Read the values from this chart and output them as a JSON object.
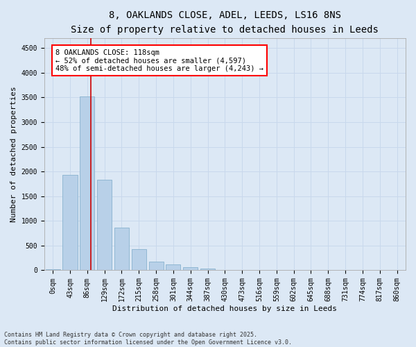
{
  "title_line1": "8, OAKLANDS CLOSE, ADEL, LEEDS, LS16 8NS",
  "title_line2": "Size of property relative to detached houses in Leeds",
  "xlabel": "Distribution of detached houses by size in Leeds",
  "ylabel": "Number of detached properties",
  "categories": [
    "0sqm",
    "43sqm",
    "86sqm",
    "129sqm",
    "172sqm",
    "215sqm",
    "258sqm",
    "301sqm",
    "344sqm",
    "387sqm",
    "430sqm",
    "473sqm",
    "516sqm",
    "559sqm",
    "602sqm",
    "645sqm",
    "688sqm",
    "731sqm",
    "774sqm",
    "817sqm",
    "860sqm"
  ],
  "values": [
    20,
    1930,
    3520,
    1830,
    870,
    430,
    175,
    115,
    65,
    30,
    10,
    5,
    0,
    0,
    0,
    0,
    0,
    0,
    0,
    0,
    0
  ],
  "bar_color": "#b8d0e8",
  "bar_edge_color": "#7aaac8",
  "grid_color": "#c8d8ec",
  "background_color": "#dce8f5",
  "vline_color": "#cc0000",
  "annotation_text_line1": "8 OAKLANDS CLOSE: 118sqm",
  "annotation_text_line2": "← 52% of detached houses are smaller (4,597)",
  "annotation_text_line3": "48% of semi-detached houses are larger (4,243) →",
  "ylim": [
    0,
    4700
  ],
  "yticks": [
    0,
    500,
    1000,
    1500,
    2000,
    2500,
    3000,
    3500,
    4000,
    4500
  ],
  "footnote": "Contains HM Land Registry data © Crown copyright and database right 2025.\nContains public sector information licensed under the Open Government Licence v3.0.",
  "title_fontsize": 10,
  "subtitle_fontsize": 9,
  "axis_label_fontsize": 8,
  "tick_fontsize": 7,
  "annot_fontsize": 7.5
}
